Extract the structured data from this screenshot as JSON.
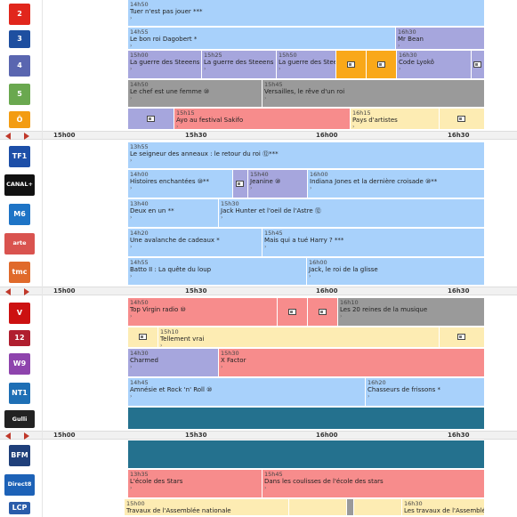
{
  "timeline": {
    "ticks": [
      "15h00",
      "15h30",
      "16h00",
      "16h30"
    ]
  },
  "channels": [
    {
      "logo": "2",
      "logo_color": "#e1261c",
      "programs": [
        {
          "start": "14h50",
          "title": "Tuer n'est pas jouer",
          "extra": "***",
          "color": "blue",
          "offset": 0,
          "width": 401
        }
      ]
    },
    {
      "logo": "3",
      "logo_color": "#1e4fa0",
      "programs": [
        {
          "start": "14h55",
          "title": "Le bon roi Dagobert",
          "extra": "*",
          "color": "blue",
          "offset": 0,
          "width": 301
        },
        {
          "start": "16h30",
          "title": "Mr Bean",
          "extra": "",
          "color": "lav",
          "offset": 301,
          "width": 100
        }
      ]
    },
    {
      "logo": "4",
      "logo_color": "#5a66b0",
      "programs": [
        {
          "start": "15h00",
          "title": "La guerre des Steeens",
          "extra": "",
          "color": "lav",
          "offset": 0,
          "width": 83
        },
        {
          "start": "15h25",
          "title": "La guerre des Steeens",
          "extra": "",
          "color": "lav",
          "offset": 83,
          "width": 84
        },
        {
          "start": "15h50",
          "title": "La guerre des Steeens",
          "extra": "",
          "color": "lav",
          "offset": 167,
          "width": 67
        },
        {
          "start": "",
          "title": "",
          "extra": "",
          "color": "orange",
          "offset": 234,
          "width": 34,
          "icon": true
        },
        {
          "start": "",
          "title": "",
          "extra": "",
          "color": "orange",
          "offset": 268,
          "width": 34,
          "icon": true
        },
        {
          "start": "16h30",
          "title": "Code Lyokô",
          "extra": "",
          "color": "lav",
          "offset": 302,
          "width": 84
        },
        {
          "start": "",
          "title": "",
          "extra": "",
          "color": "lav",
          "offset": 386,
          "width": 15,
          "icon": true
        }
      ]
    },
    {
      "logo": "5",
      "logo_color": "#6aa84f",
      "programs": [
        {
          "start": "14h50",
          "title": "Le chef est une femme",
          "extra": "⑩",
          "color": "gray",
          "offset": 0,
          "width": 151
        },
        {
          "start": "15h45",
          "title": "Versailles, le rêve d'un roi",
          "extra": "",
          "color": "gray",
          "offset": 151,
          "width": 250
        }
      ]
    },
    {
      "logo": "Ô",
      "logo_color": "#f39c12",
      "programs": [
        {
          "start": "",
          "title": "",
          "extra": "",
          "color": "lav",
          "offset": 0,
          "width": 52,
          "icon": true
        },
        {
          "start": "15h15",
          "title": "Ayo au festival Sakifo",
          "extra": "",
          "color": "pink",
          "offset": 52,
          "width": 198
        },
        {
          "start": "16h15",
          "title": "Pays d'artistes",
          "extra": "",
          "color": "cream",
          "offset": 250,
          "width": 100
        },
        {
          "start": "",
          "title": "",
          "extra": "",
          "color": "cream",
          "offset": 350,
          "width": 51,
          "icon": true
        }
      ]
    },
    {
      "logo": "TF1",
      "logo_color": "#1d4fa8",
      "programs": [
        {
          "start": "13h55",
          "title": "Le seigneur des anneaux : le retour du roi",
          "extra": "⑫***",
          "color": "blue",
          "offset": 0,
          "width": 401
        }
      ]
    },
    {
      "logo": "CANAL+",
      "logo_color": "#111111",
      "programs": [
        {
          "start": "14h00",
          "title": "Histoires enchantées",
          "extra": "⑩**",
          "color": "blue",
          "offset": 0,
          "width": 118
        },
        {
          "start": "",
          "title": "",
          "extra": "",
          "color": "lav",
          "offset": 118,
          "width": 17,
          "icon": true
        },
        {
          "start": "15h40",
          "title": "Jeanine",
          "extra": "⑩",
          "color": "lav",
          "offset": 135,
          "width": 67
        },
        {
          "start": "16h00",
          "title": "Indiana Jones et la dernière croisade",
          "extra": "⑩**",
          "color": "blue",
          "offset": 202,
          "width": 199
        }
      ]
    },
    {
      "logo": "M6",
      "logo_color": "#1e74c6",
      "programs": [
        {
          "start": "13h40",
          "title": "Deux en un",
          "extra": "**",
          "color": "blue",
          "offset": 0,
          "width": 102
        },
        {
          "start": "15h30",
          "title": "Jack Hunter et l'oeil de l'Astre",
          "extra": "⑫",
          "color": "blue",
          "offset": 102,
          "width": 299
        }
      ]
    },
    {
      "logo": "arte",
      "logo_color": "#d9534f",
      "programs": [
        {
          "start": "14h20",
          "title": "Une avalanche de cadeaux",
          "extra": "*",
          "color": "blue",
          "offset": 0,
          "width": 151
        },
        {
          "start": "15h45",
          "title": "Mais qui a tué Harry ?",
          "extra": "***",
          "color": "blue",
          "offset": 151,
          "width": 250
        }
      ]
    },
    {
      "logo": "tmc",
      "logo_color": "#e06a2b",
      "programs": [
        {
          "start": "14h55",
          "title": "Batto II : La quête du loup",
          "extra": "",
          "color": "blue",
          "offset": 0,
          "width": 201
        },
        {
          "start": "16h00",
          "title": "Jack, le roi de la glisse",
          "extra": "",
          "color": "blue",
          "offset": 201,
          "width": 200
        }
      ]
    },
    {
      "logo": "V",
      "logo_color": "#cc1111",
      "programs": [
        {
          "start": "14h50",
          "title": "Top Virgin radio",
          "extra": "⑩",
          "color": "pink",
          "offset": 0,
          "width": 168
        },
        {
          "start": "",
          "title": "",
          "extra": "",
          "color": "pink",
          "offset": 168,
          "width": 34,
          "icon": true
        },
        {
          "start": "",
          "title": "",
          "extra": "",
          "color": "pink",
          "offset": 202,
          "width": 34,
          "icon": true
        },
        {
          "start": "16h10",
          "title": "Les 20 reines de la musique",
          "extra": "",
          "color": "gray",
          "offset": 236,
          "width": 165
        }
      ]
    },
    {
      "logo": "12",
      "logo_color": "#b01e2f",
      "programs": [
        {
          "start": "",
          "title": "",
          "extra": "",
          "color": "cream",
          "offset": 0,
          "width": 34,
          "icon": true
        },
        {
          "start": "15h10",
          "title": "Tellement vrai",
          "extra": "",
          "color": "cream",
          "offset": 34,
          "width": 316
        },
        {
          "start": "",
          "title": "",
          "extra": "",
          "color": "cream",
          "offset": 350,
          "width": 51,
          "icon": true
        }
      ]
    },
    {
      "logo": "W9",
      "logo_color": "#8e44ad",
      "programs": [
        {
          "start": "14h30",
          "title": "Charmed",
          "extra": "",
          "color": "lav",
          "offset": 0,
          "width": 102
        },
        {
          "start": "15h30",
          "title": "X Factor",
          "extra": "",
          "color": "pink",
          "offset": 102,
          "width": 299
        }
      ]
    },
    {
      "logo": "NT1",
      "logo_color": "#1e6fb5",
      "programs": [
        {
          "start": "14h45",
          "title": "Amnésie et Rock 'n' Roll",
          "extra": "⑩",
          "color": "blue",
          "offset": 0,
          "width": 267
        },
        {
          "start": "16h20",
          "title": "Chasseurs de frissons",
          "extra": "*",
          "color": "blue",
          "offset": 267,
          "width": 134
        }
      ]
    },
    {
      "logo": "Gulli",
      "logo_color": "#222222",
      "programs": [
        {
          "start": "",
          "title": "",
          "extra": "",
          "color": "teal",
          "offset": 0,
          "width": 401
        }
      ]
    },
    {
      "logo": "BFM",
      "logo_color": "#1f3f7a",
      "programs": [
        {
          "start": "",
          "title": "",
          "extra": "",
          "color": "teal",
          "offset": 0,
          "width": 401
        }
      ]
    },
    {
      "logo": "Direct8",
      "logo_color": "#1d62b7",
      "programs": [
        {
          "start": "13h35",
          "title": "L'école des Stars",
          "extra": "",
          "color": "pink",
          "offset": 0,
          "width": 151
        },
        {
          "start": "15h45",
          "title": "Dans les coulisses de l'école des stars",
          "extra": "",
          "color": "pink",
          "offset": 151,
          "width": 250
        }
      ]
    },
    {
      "logo": "LCP",
      "logo_color": "#2a5caa",
      "programs": [
        {
          "start": "15h00",
          "title": "Travaux de l'Assemblée nationale",
          "extra": "",
          "color": "cream",
          "offset": -4,
          "width": 185
        },
        {
          "start": "",
          "title": "",
          "extra": "",
          "color": "cream",
          "offset": 181,
          "width": 65
        },
        {
          "start": "",
          "title": "",
          "extra": "",
          "color": "gray",
          "offset": 246,
          "width": 8
        },
        {
          "start": "",
          "title": "",
          "extra": "",
          "color": "cream",
          "offset": 254,
          "width": 54
        },
        {
          "start": "16h30",
          "title": "Les travaux de l'Assemblée",
          "extra": "",
          "color": "cream",
          "offset": 308,
          "width": 93
        }
      ]
    }
  ]
}
